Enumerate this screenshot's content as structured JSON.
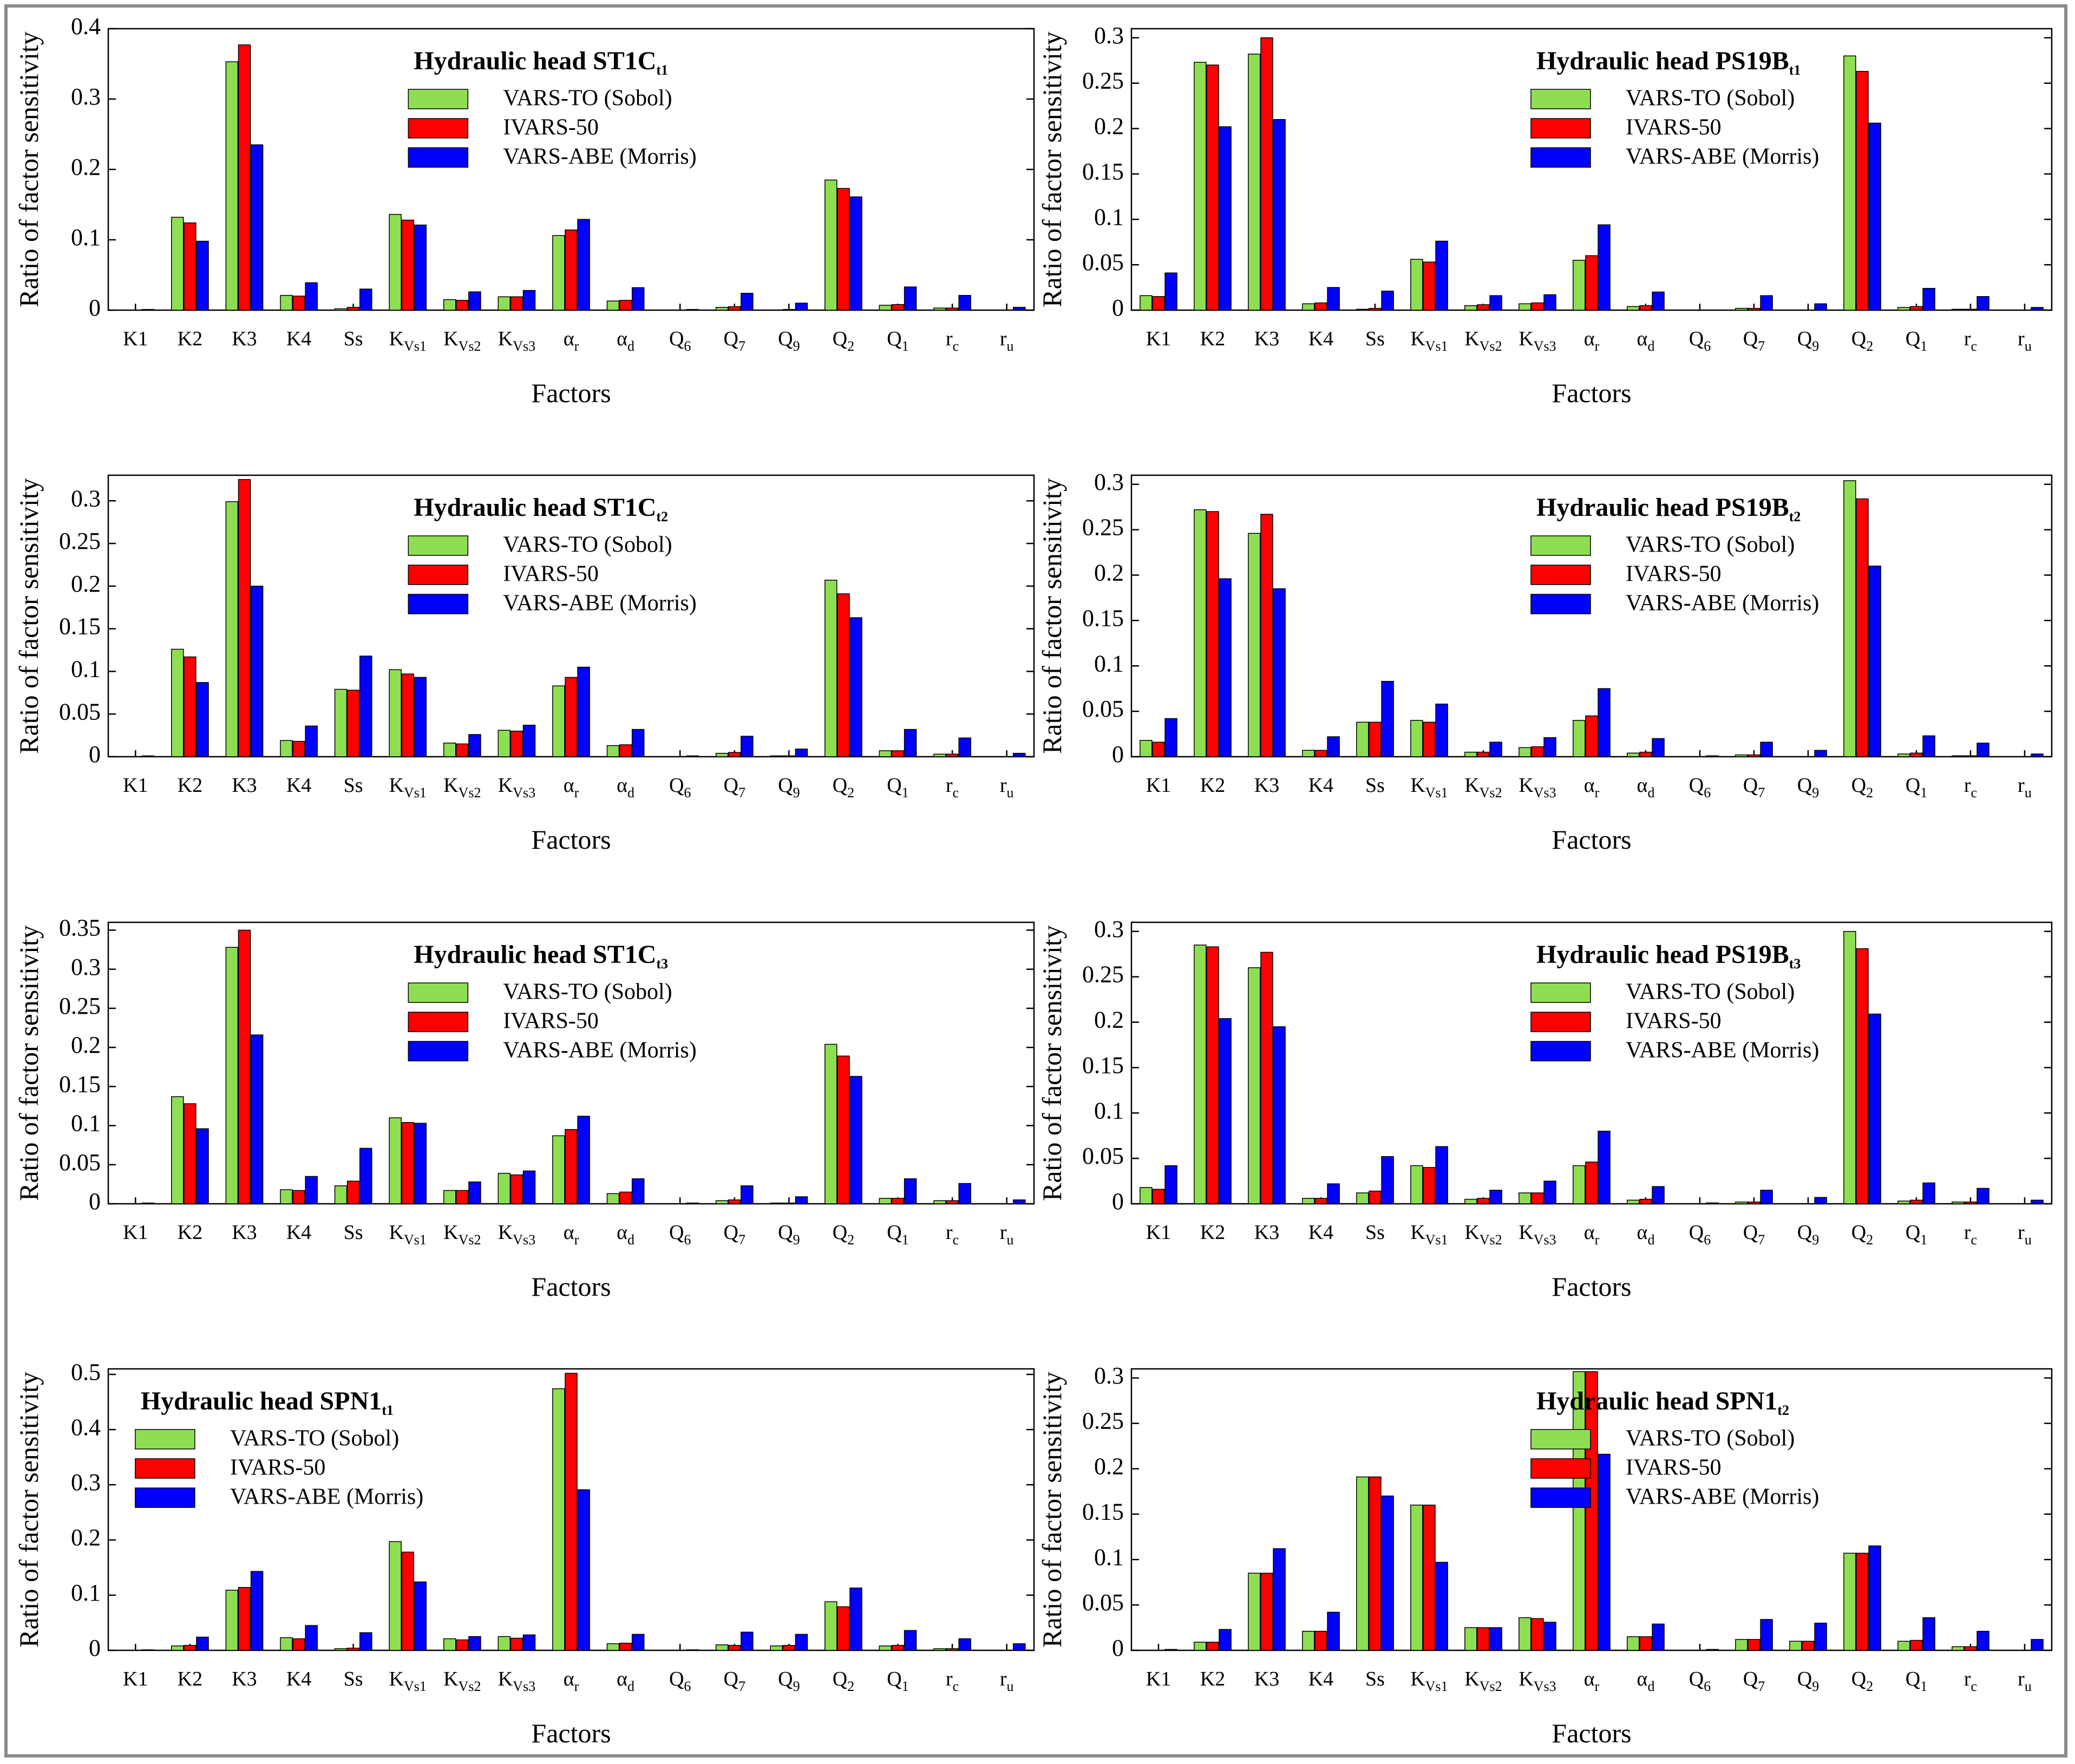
{
  "figure": {
    "ylabel": "Ratio of factor sensitivity",
    "xlabel": "Factors",
    "legend": [
      "VARS-TO (Sobol)",
      "IVARS-50",
      "VARS-ABE (Morris)"
    ],
    "colors": [
      "#8ede52",
      "#ff0000",
      "#0000ff"
    ],
    "categories": [
      {
        "main": "K1",
        "sub": ""
      },
      {
        "main": "K2",
        "sub": ""
      },
      {
        "main": "K3",
        "sub": ""
      },
      {
        "main": "K4",
        "sub": ""
      },
      {
        "main": "Ss",
        "sub": ""
      },
      {
        "main": "K",
        "sub": "Vs1"
      },
      {
        "main": "K",
        "sub": "Vs2"
      },
      {
        "main": "K",
        "sub": "Vs3"
      },
      {
        "main": "α",
        "sub": "r"
      },
      {
        "main": "α",
        "sub": "d"
      },
      {
        "main": "Q",
        "sub": "6"
      },
      {
        "main": "Q",
        "sub": "7"
      },
      {
        "main": "Q",
        "sub": "9"
      },
      {
        "main": "Q",
        "sub": "2"
      },
      {
        "main": "Q",
        "sub": "1"
      },
      {
        "main": "r",
        "sub": "c"
      },
      {
        "main": "r",
        "sub": "u"
      }
    ]
  },
  "chart_data": [
    {
      "type": "bar",
      "title_main": "Hydraulic head ST1C",
      "title_sub": "t1",
      "legend_position": "top-center",
      "ylim": [
        0,
        0.4
      ],
      "yticks": [
        0,
        0.1,
        0.2,
        0.3,
        0.4
      ],
      "ytick_labels": [
        "0",
        "0.1",
        "0.2",
        "0.3",
        "0.4"
      ],
      "series": [
        {
          "name": "VARS-TO (Sobol)",
          "values": [
            0,
            0.132,
            0.353,
            0.021,
            0.002,
            0.136,
            0.015,
            0.019,
            0.106,
            0.013,
            0,
            0.004,
            0,
            0.185,
            0.007,
            0.003,
            0
          ]
        },
        {
          "name": "IVARS-50",
          "values": [
            0,
            0.124,
            0.377,
            0.02,
            0.004,
            0.128,
            0.014,
            0.019,
            0.114,
            0.014,
            0,
            0.005,
            0.001,
            0.173,
            0.008,
            0.003,
            0
          ]
        },
        {
          "name": "VARS-ABE (Morris)",
          "values": [
            0.001,
            0.098,
            0.235,
            0.039,
            0.03,
            0.121,
            0.026,
            0.028,
            0.129,
            0.032,
            0.001,
            0.024,
            0.01,
            0.161,
            0.033,
            0.021,
            0.004
          ]
        }
      ]
    },
    {
      "type": "bar",
      "title_main": "Hydraulic head PS19B",
      "title_sub": "t1",
      "legend_position": "top-right",
      "ylim": [
        0,
        0.31
      ],
      "yticks": [
        0,
        0.05,
        0.1,
        0.15,
        0.2,
        0.25,
        0.3
      ],
      "ytick_labels": [
        "0",
        "0.05",
        "0.1",
        "0.15",
        "0.2",
        "0.25",
        "0.3"
      ],
      "series": [
        {
          "name": "VARS-TO (Sobol)",
          "values": [
            0.016,
            0.273,
            0.282,
            0.007,
            0.001,
            0.056,
            0.005,
            0.007,
            0.055,
            0.004,
            0,
            0.002,
            0,
            0.28,
            0.003,
            0.001,
            0
          ]
        },
        {
          "name": "IVARS-50",
          "values": [
            0.015,
            0.27,
            0.3,
            0.008,
            0.002,
            0.053,
            0.006,
            0.008,
            0.06,
            0.005,
            0,
            0.002,
            0,
            0.263,
            0.004,
            0.001,
            0
          ]
        },
        {
          "name": "VARS-ABE (Morris)",
          "values": [
            0.041,
            0.202,
            0.21,
            0.025,
            0.021,
            0.076,
            0.016,
            0.017,
            0.094,
            0.02,
            0,
            0.016,
            0.007,
            0.206,
            0.024,
            0.015,
            0.003
          ]
        }
      ]
    },
    {
      "type": "bar",
      "title_main": "Hydraulic head ST1C",
      "title_sub": "t2",
      "legend_position": "top-center",
      "ylim": [
        0,
        0.33
      ],
      "yticks": [
        0,
        0.05,
        0.1,
        0.15,
        0.2,
        0.25,
        0.3
      ],
      "ytick_labels": [
        "0",
        "0.05",
        "0.1",
        "0.15",
        "0.2",
        "0.25",
        "0.3"
      ],
      "series": [
        {
          "name": "VARS-TO (Sobol)",
          "values": [
            0,
            0.126,
            0.299,
            0.019,
            0.079,
            0.102,
            0.016,
            0.031,
            0.083,
            0.013,
            0,
            0.004,
            0.001,
            0.207,
            0.007,
            0.003,
            0
          ]
        },
        {
          "name": "IVARS-50",
          "values": [
            0,
            0.117,
            0.325,
            0.018,
            0.078,
            0.097,
            0.015,
            0.03,
            0.093,
            0.014,
            0,
            0.005,
            0.001,
            0.191,
            0.007,
            0.003,
            0
          ]
        },
        {
          "name": "VARS-ABE (Morris)",
          "values": [
            0.001,
            0.087,
            0.2,
            0.036,
            0.118,
            0.093,
            0.026,
            0.037,
            0.105,
            0.032,
            0.001,
            0.024,
            0.009,
            0.163,
            0.032,
            0.022,
            0.004
          ]
        }
      ]
    },
    {
      "type": "bar",
      "title_main": "Hydraulic head PS19B",
      "title_sub": "t2",
      "legend_position": "top-right",
      "ylim": [
        0,
        0.31
      ],
      "yticks": [
        0,
        0.05,
        0.1,
        0.15,
        0.2,
        0.25,
        0.3
      ],
      "ytick_labels": [
        "0",
        "0.05",
        "0.1",
        "0.15",
        "0.2",
        "0.25",
        "0.3"
      ],
      "series": [
        {
          "name": "VARS-TO (Sobol)",
          "values": [
            0.018,
            0.272,
            0.246,
            0.007,
            0.038,
            0.04,
            0.005,
            0.01,
            0.04,
            0.004,
            0,
            0.002,
            0,
            0.304,
            0.003,
            0.001,
            0
          ]
        },
        {
          "name": "IVARS-50",
          "values": [
            0.016,
            0.27,
            0.267,
            0.007,
            0.038,
            0.038,
            0.005,
            0.011,
            0.045,
            0.005,
            0,
            0.002,
            0,
            0.284,
            0.004,
            0.001,
            0
          ]
        },
        {
          "name": "VARS-ABE (Morris)",
          "values": [
            0.042,
            0.196,
            0.185,
            0.022,
            0.083,
            0.058,
            0.016,
            0.021,
            0.075,
            0.02,
            0.001,
            0.016,
            0.007,
            0.21,
            0.023,
            0.015,
            0.003
          ]
        }
      ]
    },
    {
      "type": "bar",
      "title_main": "Hydraulic head ST1C",
      "title_sub": "t3",
      "legend_position": "top-center",
      "ylim": [
        0,
        0.36
      ],
      "yticks": [
        0,
        0.05,
        0.1,
        0.15,
        0.2,
        0.25,
        0.3,
        0.35
      ],
      "ytick_labels": [
        "0",
        "0.05",
        "0.1",
        "0.15",
        "0.2",
        "0.25",
        "0.3",
        "0.35"
      ],
      "series": [
        {
          "name": "VARS-TO (Sobol)",
          "values": [
            0,
            0.137,
            0.328,
            0.018,
            0.023,
            0.11,
            0.017,
            0.039,
            0.087,
            0.013,
            0,
            0.004,
            0.001,
            0.204,
            0.007,
            0.004,
            0
          ]
        },
        {
          "name": "IVARS-50",
          "values": [
            0,
            0.128,
            0.35,
            0.017,
            0.029,
            0.104,
            0.017,
            0.037,
            0.095,
            0.015,
            0,
            0.005,
            0.001,
            0.189,
            0.007,
            0.004,
            0
          ]
        },
        {
          "name": "VARS-ABE (Morris)",
          "values": [
            0.001,
            0.096,
            0.216,
            0.035,
            0.071,
            0.103,
            0.028,
            0.042,
            0.112,
            0.032,
            0.001,
            0.023,
            0.009,
            0.163,
            0.032,
            0.026,
            0.005
          ]
        }
      ]
    },
    {
      "type": "bar",
      "title_main": "Hydraulic head PS19B",
      "title_sub": "t3",
      "legend_position": "top-right",
      "ylim": [
        0,
        0.31
      ],
      "yticks": [
        0,
        0.05,
        0.1,
        0.15,
        0.2,
        0.25,
        0.3
      ],
      "ytick_labels": [
        "0",
        "0.05",
        "0.1",
        "0.15",
        "0.2",
        "0.25",
        "0.3"
      ],
      "series": [
        {
          "name": "VARS-TO (Sobol)",
          "values": [
            0.018,
            0.285,
            0.26,
            0.006,
            0.012,
            0.042,
            0.005,
            0.012,
            0.042,
            0.004,
            0,
            0.002,
            0,
            0.3,
            0.003,
            0.002,
            0
          ]
        },
        {
          "name": "IVARS-50",
          "values": [
            0.016,
            0.283,
            0.277,
            0.006,
            0.014,
            0.04,
            0.006,
            0.012,
            0.046,
            0.005,
            0,
            0.002,
            0,
            0.281,
            0.004,
            0.002,
            0
          ]
        },
        {
          "name": "VARS-ABE (Morris)",
          "values": [
            0.042,
            0.204,
            0.195,
            0.022,
            0.052,
            0.063,
            0.015,
            0.025,
            0.08,
            0.019,
            0.001,
            0.015,
            0.007,
            0.209,
            0.023,
            0.017,
            0.004
          ]
        }
      ]
    },
    {
      "type": "bar",
      "title_main": "Hydraulic head SPN1",
      "title_sub": "t1",
      "legend_position": "top-left",
      "ylim": [
        0,
        0.51
      ],
      "yticks": [
        0,
        0.1,
        0.2,
        0.3,
        0.4,
        0.5
      ],
      "ytick_labels": [
        "0",
        "0.1",
        "0.2",
        "0.3",
        "0.4",
        "0.5"
      ],
      "series": [
        {
          "name": "VARS-TO (Sobol)",
          "values": [
            0,
            0.008,
            0.109,
            0.023,
            0.003,
            0.197,
            0.021,
            0.025,
            0.474,
            0.012,
            0,
            0.01,
            0.008,
            0.088,
            0.008,
            0.003,
            0
          ]
        },
        {
          "name": "IVARS-50",
          "values": [
            0,
            0.009,
            0.114,
            0.021,
            0.004,
            0.178,
            0.019,
            0.022,
            0.502,
            0.013,
            0,
            0.009,
            0.009,
            0.079,
            0.009,
            0.003,
            0
          ]
        },
        {
          "name": "VARS-ABE (Morris)",
          "values": [
            0.001,
            0.024,
            0.143,
            0.045,
            0.032,
            0.124,
            0.025,
            0.028,
            0.291,
            0.029,
            0.001,
            0.033,
            0.029,
            0.113,
            0.036,
            0.021,
            0.012
          ]
        }
      ]
    },
    {
      "type": "bar",
      "title_main": "Hydraulic head SPN1",
      "title_sub": "t2",
      "legend_position": "top-right",
      "ylim": [
        0,
        0.31
      ],
      "yticks": [
        0,
        0.05,
        0.1,
        0.15,
        0.2,
        0.25,
        0.3
      ],
      "ytick_labels": [
        "0",
        "0.05",
        "0.1",
        "0.15",
        "0.2",
        "0.25",
        "0.3"
      ],
      "series": [
        {
          "name": "VARS-TO (Sobol)",
          "values": [
            0,
            0.009,
            0.085,
            0.021,
            0.191,
            0.16,
            0.025,
            0.036,
            0.307,
            0.015,
            0,
            0.012,
            0.01,
            0.107,
            0.01,
            0.004,
            0
          ]
        },
        {
          "name": "IVARS-50",
          "values": [
            0,
            0.009,
            0.085,
            0.021,
            0.191,
            0.16,
            0.025,
            0.035,
            0.307,
            0.015,
            0,
            0.012,
            0.01,
            0.107,
            0.011,
            0.004,
            0
          ]
        },
        {
          "name": "VARS-ABE (Morris)",
          "values": [
            0.001,
            0.023,
            0.112,
            0.042,
            0.17,
            0.097,
            0.025,
            0.031,
            0.216,
            0.029,
            0.001,
            0.034,
            0.03,
            0.115,
            0.036,
            0.021,
            0.012
          ]
        }
      ]
    }
  ]
}
